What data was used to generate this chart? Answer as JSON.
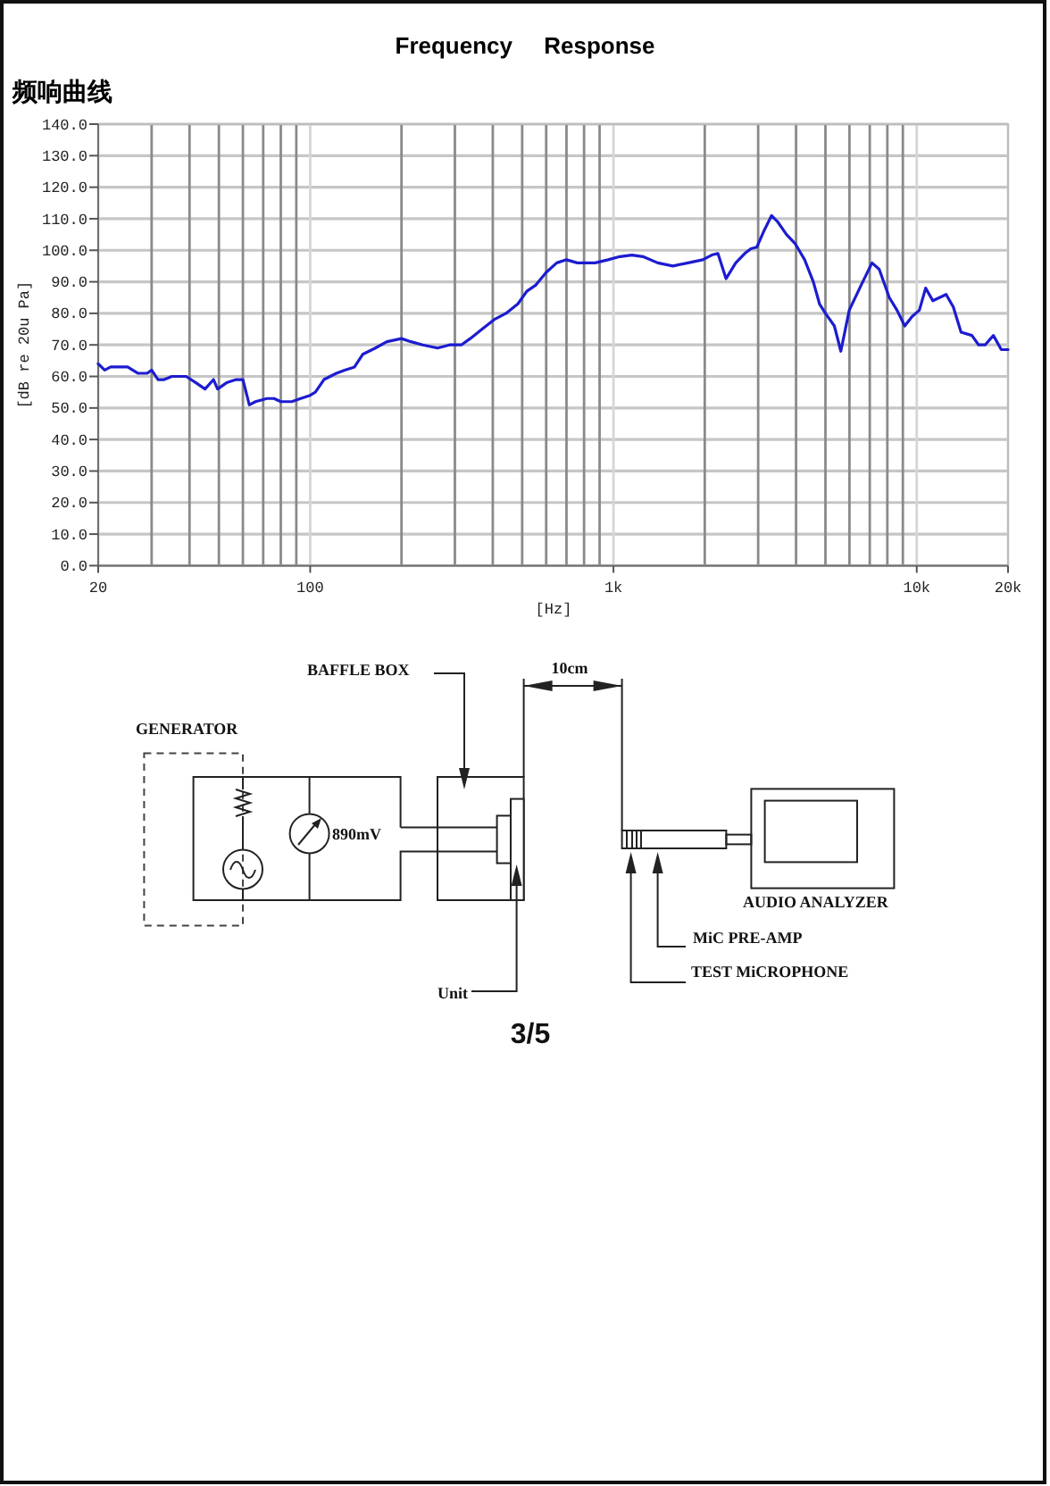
{
  "chart_data": [
    {
      "type": "line",
      "title": "Frequency Response",
      "subtitle": "频响曲线",
      "xlabel": "[Hz]",
      "ylabel": "[dB re 20u Pa]",
      "x": [
        20,
        21,
        22,
        24,
        25,
        27,
        29,
        30,
        31.5,
        33,
        35,
        39,
        42,
        45,
        48,
        49.5,
        53,
        57,
        60,
        63,
        66,
        72,
        76,
        80,
        87,
        93,
        100,
        104,
        111,
        122,
        130,
        140,
        149,
        164,
        179,
        200,
        215,
        235,
        263,
        288,
        315,
        337,
        369,
        404,
        442,
        484,
        518,
        555,
        600,
        650,
        700,
        760,
        870,
        960,
        1050,
        1150,
        1250,
        1400,
        1570,
        1760,
        1970,
        2110,
        2210,
        2350,
        2530,
        2710,
        2840,
        2970,
        3130,
        3320,
        3480,
        3720,
        3980,
        4270,
        4560,
        4780,
        5000,
        5350,
        5620,
        5990,
        6560,
        7120,
        7520,
        8120,
        8610,
        9130,
        9650,
        10200,
        10700,
        11300,
        12500,
        13200,
        14000,
        15200,
        16000,
        16800,
        17900,
        19000,
        20000
      ],
      "series": [
        {
          "color": "#1c1cd0",
          "values": [
            64,
            62,
            63,
            63,
            63,
            61,
            61,
            62,
            59,
            59,
            60,
            60,
            58,
            56,
            59,
            56,
            58,
            59,
            59,
            51,
            52,
            53,
            53,
            52,
            52,
            53,
            54,
            55,
            59,
            61,
            62,
            63,
            67,
            69,
            71,
            72,
            71,
            70,
            69,
            70,
            70,
            72,
            75,
            78,
            80,
            83,
            87,
            89,
            93,
            96,
            97,
            96,
            96,
            97,
            98,
            98.5,
            98,
            96,
            95,
            96,
            97,
            98.5,
            99,
            91,
            96,
            99,
            100.5,
            101,
            106,
            111,
            109,
            105,
            102,
            97,
            90,
            83,
            80,
            76,
            68,
            81,
            89,
            96,
            94,
            85,
            81,
            76,
            79,
            81,
            88,
            84,
            86,
            82,
            74,
            73,
            70,
            70,
            73,
            68.5,
            68.5
          ]
        }
      ],
      "xlim": [
        20,
        20000
      ],
      "ylim": [
        0,
        140
      ],
      "xticks": [
        20,
        {
          "value": 30,
          "label": null
        },
        {
          "value": 40,
          "label": null
        },
        {
          "value": 50,
          "label": null
        },
        {
          "value": 60,
          "label": null
        },
        {
          "value": 70,
          "label": null
        },
        {
          "value": 80,
          "label": null
        },
        {
          "value": 90,
          "label": null
        },
        100,
        {
          "value": 200,
          "label": null
        },
        {
          "value": 300,
          "label": null
        },
        {
          "value": 400,
          "label": null
        },
        {
          "value": 500,
          "label": null
        },
        {
          "value": 600,
          "label": null
        },
        {
          "value": 700,
          "label": null
        },
        {
          "value": 800,
          "label": null
        },
        {
          "value": 900,
          "label": null
        },
        {
          "value": 1000,
          "label": "1k"
        },
        {
          "value": 2000,
          "label": null
        },
        {
          "value": 3000,
          "label": null
        },
        {
          "value": 4000,
          "label": null
        },
        {
          "value": 5000,
          "label": null
        },
        {
          "value": 6000,
          "label": null
        },
        {
          "value": 7000,
          "label": null
        },
        {
          "value": 8000,
          "label": null
        },
        {
          "value": 9000,
          "label": null
        },
        {
          "value": 10000,
          "label": "10k"
        },
        {
          "value": 20000,
          "label": "20k"
        }
      ],
      "yticks": [
        {
          "value": 0,
          "label": "0.0"
        },
        {
          "value": 10,
          "label": "10.0"
        },
        {
          "value": 20,
          "label": "20.0"
        },
        {
          "value": 30,
          "label": "30.0"
        },
        {
          "value": 40,
          "label": "40.0"
        },
        {
          "value": 50,
          "label": "50.0"
        },
        {
          "value": 60,
          "label": "60.0"
        },
        {
          "value": 70,
          "label": "70.0"
        },
        {
          "value": 80,
          "label": "80.0"
        },
        {
          "value": 90,
          "label": "90.0"
        },
        {
          "value": 100,
          "label": "100.0"
        },
        {
          "value": 110,
          "label": "110.0"
        },
        {
          "value": 120,
          "label": "120.0"
        },
        {
          "value": 130,
          "label": "130.0"
        },
        {
          "value": 140,
          "label": "140.0"
        }
      ],
      "log": "x",
      "grid": true,
      "line_style": "solid"
    },
    {
      "type": "other",
      "annotations": [
        "BAFFLE BOX",
        "10cm",
        "GENERATOR",
        "890mV",
        "AUDIO ANALYZER",
        "MiC PRE-AMP",
        "TEST MiCROPHONE",
        "Unit",
        "3/5"
      ]
    }
  ]
}
